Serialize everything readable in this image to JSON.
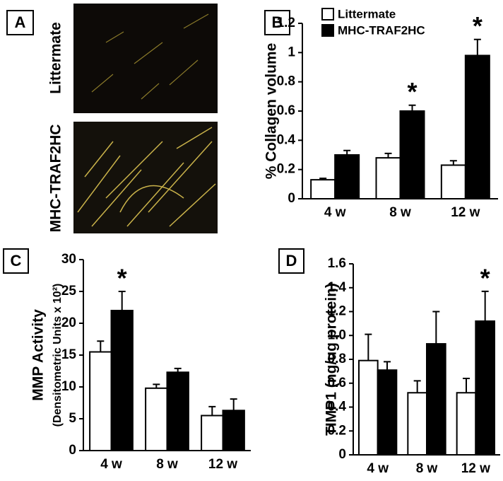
{
  "image_panel": {
    "panel_label": "A",
    "rows": [
      "Littermate",
      "MHC-TRAF2HC"
    ]
  },
  "chart_data": [
    {
      "type": "bar",
      "panel_label": "B",
      "ylabel": "% Collagen volume",
      "categories": [
        "4 w",
        "8 w",
        "12 w"
      ],
      "series": [
        {
          "name": "Littermate",
          "color": "#ffffff",
          "values": [
            0.13,
            0.28,
            0.23
          ],
          "errors": [
            0.01,
            0.03,
            0.03
          ]
        },
        {
          "name": "MHC-TRAF2HC",
          "color": "#000000",
          "values": [
            0.3,
            0.6,
            0.98
          ],
          "errors": [
            0.03,
            0.04,
            0.11
          ]
        }
      ],
      "ylim": [
        0,
        1.2
      ],
      "yticks": [
        0,
        0.2,
        0.4,
        0.6,
        0.8,
        1,
        1.2
      ],
      "legend": "top-left",
      "annotations": [
        {
          "text": "*",
          "x": "8 w"
        },
        {
          "text": "*",
          "x": "12 w"
        }
      ]
    },
    {
      "type": "bar",
      "panel_label": "C",
      "ylabel": "MMP Activity",
      "ylabel2": "(Densitometric Units x 10²)",
      "categories": [
        "4 w",
        "8 w",
        "12 w"
      ],
      "series": [
        {
          "name": "Littermate",
          "color": "#ffffff",
          "values": [
            15.5,
            9.8,
            5.5
          ],
          "errors": [
            1.7,
            0.6,
            1.4
          ]
        },
        {
          "name": "MHC-TRAF2HC",
          "color": "#000000",
          "values": [
            22,
            12.3,
            6.3
          ],
          "errors": [
            3,
            0.6,
            1.8
          ]
        }
      ],
      "ylim": [
        0,
        30
      ],
      "yticks": [
        0,
        5,
        10,
        15,
        20,
        25,
        30
      ],
      "annotations": [
        {
          "text": "*",
          "x": "4 w"
        }
      ]
    },
    {
      "type": "bar",
      "panel_label": "D",
      "ylabel": "TIMP1 (ng/ug protein)",
      "categories": [
        "4 w",
        "8 w",
        "12 w"
      ],
      "series": [
        {
          "name": "Littermate",
          "color": "#ffffff",
          "values": [
            0.79,
            0.52,
            0.52
          ],
          "errors": [
            0.22,
            0.1,
            0.12
          ]
        },
        {
          "name": "MHC-TRAF2HC",
          "color": "#000000",
          "values": [
            0.71,
            0.93,
            1.12
          ],
          "errors": [
            0.07,
            0.27,
            0.25
          ]
        }
      ],
      "ylim": [
        0,
        1.6
      ],
      "yticks": [
        0,
        0.2,
        0.4,
        0.6,
        0.8,
        {
          "value": 1,
          "label": "1.0"
        },
        1.2,
        1.4,
        1.6
      ],
      "annotations": [
        {
          "text": "*",
          "x": "12 w"
        }
      ]
    }
  ]
}
